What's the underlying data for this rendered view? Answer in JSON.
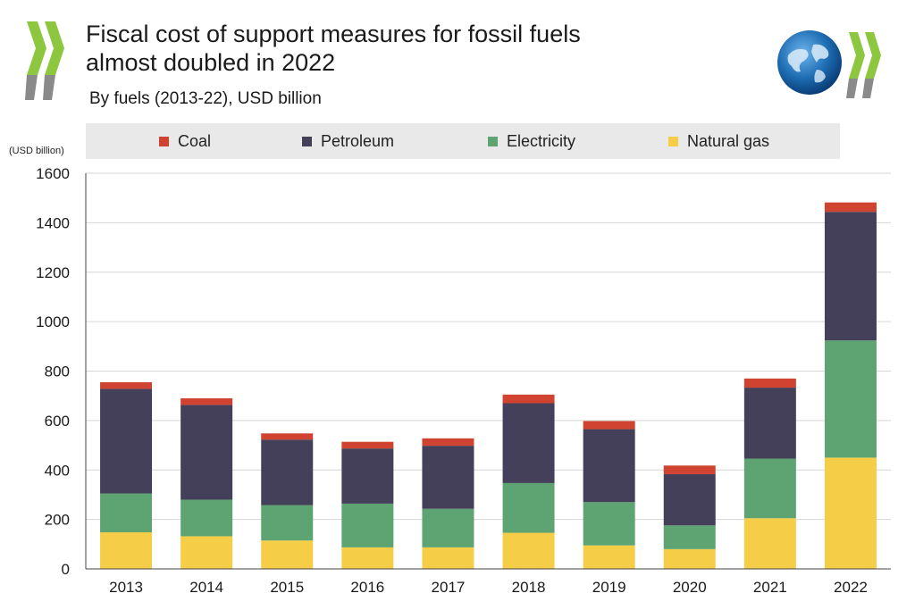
{
  "header": {
    "title_line1": "Fiscal cost of support measures for fossil fuels",
    "title_line2": "almost doubled in 2022",
    "subtitle": "By fuels (2013-22), USD billion",
    "unit_label": "(USD billion)"
  },
  "colors": {
    "coal": "#cf4330",
    "petroleum": "#45405a",
    "electricity": "#5ea472",
    "natural_gas": "#f5cd47",
    "logo_green": "#8dc63f",
    "logo_gray": "#8a8a8a",
    "globe": "#1e6db3"
  },
  "logos": {
    "left": "oecd-chevron-logo",
    "right": "oecd-globe-logo"
  },
  "chart_data": {
    "type": "bar",
    "stacked": true,
    "categories": [
      "2013",
      "2014",
      "2015",
      "2016",
      "2017",
      "2018",
      "2019",
      "2020",
      "2021",
      "2022"
    ],
    "series": [
      {
        "name": "Natural gas",
        "key": "natural_gas",
        "values": [
          148,
          132,
          115,
          87,
          87,
          146,
          95,
          80,
          205,
          450
        ]
      },
      {
        "name": "Electricity",
        "key": "electricity",
        "values": [
          157,
          148,
          143,
          177,
          156,
          201,
          175,
          96,
          241,
          474
        ]
      },
      {
        "name": "Petroleum",
        "key": "petroleum",
        "values": [
          423,
          383,
          265,
          223,
          255,
          323,
          295,
          207,
          287,
          520
        ]
      },
      {
        "name": "Coal",
        "key": "coal",
        "values": [
          27,
          27,
          25,
          27,
          30,
          35,
          33,
          35,
          37,
          38
        ]
      }
    ],
    "legend_order": [
      "Coal",
      "Petroleum",
      "Electricity",
      "Natural gas"
    ],
    "yticks": [
      0,
      200,
      400,
      600,
      800,
      1000,
      1200,
      1400,
      1600
    ],
    "ylim": [
      0,
      1600
    ],
    "grid": true,
    "legend_position": "top"
  }
}
